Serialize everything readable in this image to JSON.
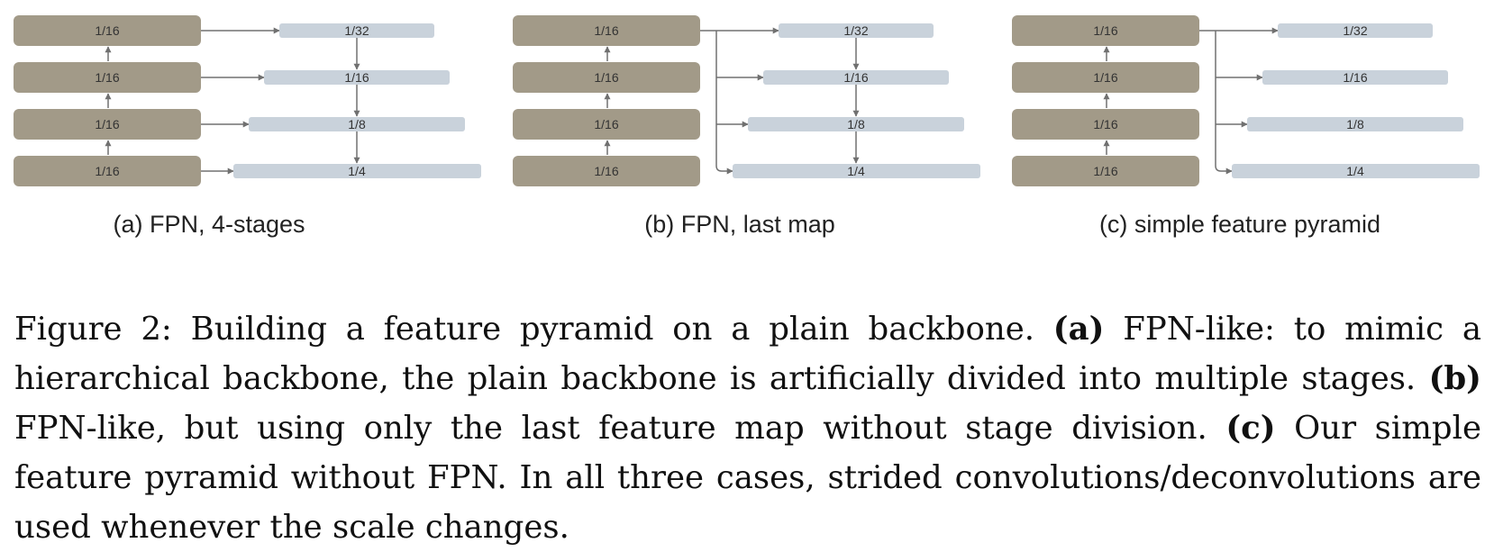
{
  "colors": {
    "backbone": "#a29a88",
    "pyramid": "#c9d2db",
    "arrow": "#707070"
  },
  "panels": [
    {
      "caption": "(a) FPN, 4-stages",
      "backbone": [
        "1/16",
        "1/16",
        "1/16",
        "1/16"
      ],
      "pyramid": [
        "1/32",
        "1/16",
        "1/8",
        "1/4"
      ]
    },
    {
      "caption": "(b) FPN, last map",
      "backbone": [
        "1/16",
        "1/16",
        "1/16",
        "1/16"
      ],
      "pyramid": [
        "1/32",
        "1/16",
        "1/8",
        "1/4"
      ]
    },
    {
      "caption": "(c) simple feature pyramid",
      "backbone": [
        "1/16",
        "1/16",
        "1/16",
        "1/16"
      ],
      "pyramid": [
        "1/32",
        "1/16",
        "1/8",
        "1/4"
      ]
    }
  ],
  "figure_caption": {
    "lead": "Figure 2: Building a feature pyramid on a plain backbone.",
    "a_marker": "(a)",
    "a_text": "FPN-like: to mimic a hierarchical backbone, the plain backbone is artificially divided into multiple stages.",
    "b_marker": "(b)",
    "b_text": "FPN-like, but using only the last feature map without stage division.",
    "c_marker": "(c)",
    "c_text": "Our simple feature pyramid without FPN. In all three cases, strided convolutions/deconvolutions are used whenever the scale changes."
  }
}
